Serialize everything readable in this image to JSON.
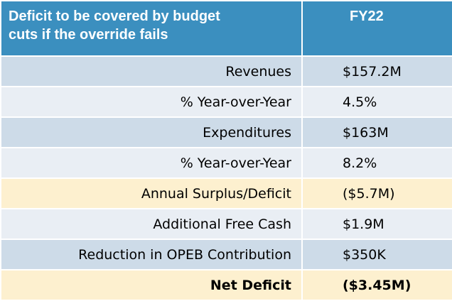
{
  "header": {
    "label_line1": "Deficit to be covered by budget",
    "label_line2": "cuts if the override fails",
    "value": "FY22"
  },
  "rows": [
    {
      "label": "Revenues",
      "value": "$157.2M"
    },
    {
      "label": "% Year-over-Year",
      "value": "4.5%"
    },
    {
      "label": "Expenditures",
      "value": "$163M"
    },
    {
      "label": "% Year-over-Year",
      "value": "8.2%"
    },
    {
      "label": "Annual Surplus/Deficit",
      "value": "($5.7M)"
    },
    {
      "label": "Additional Free Cash",
      "value": "$1.9M"
    },
    {
      "label": "Reduction in OPEB Contribution",
      "value": "$350K"
    },
    {
      "label": "Net Deficit",
      "value": "($3.45M)"
    }
  ],
  "colors": {
    "header": "#3b8fbf",
    "band_blue": "#cddbe8",
    "band_light": "#e9eef4",
    "band_yellow": "#fdf0cf"
  }
}
